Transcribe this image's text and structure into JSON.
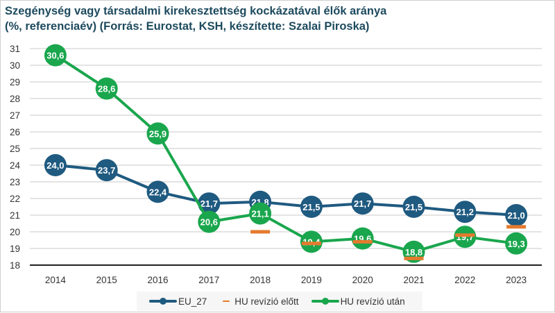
{
  "chart_data": {
    "type": "line",
    "title": "Szegénység vagy társadalmi kirekesztettség kockázatával élők aránya (%, referenciaév) (Forrás: Eurostat, KSH, készítette: Szalai Piroska)",
    "title_line1": "Szegénység vagy társadalmi kirekesztettség kockázatával élők aránya",
    "title_line2": "(%, referenciaév) (Forrás: Eurostat, KSH, készítette: Szalai Piroska)",
    "xlabel": "",
    "ylabel": "",
    "categories": [
      "2014",
      "2015",
      "2016",
      "2017",
      "2018",
      "2019",
      "2020",
      "2021",
      "2022",
      "2023"
    ],
    "ylim": [
      18,
      31
    ],
    "yticks": [
      "18",
      "19",
      "20",
      "21",
      "22",
      "23",
      "24",
      "25",
      "26",
      "27",
      "28",
      "29",
      "30",
      "31"
    ],
    "grid": true,
    "legend_position": "bottom",
    "series": [
      {
        "name": "EU_27",
        "color": "#1f5a80",
        "style": "line-marker",
        "values": [
          24.0,
          23.7,
          22.4,
          21.7,
          21.8,
          21.5,
          21.7,
          21.5,
          21.2,
          21.0
        ],
        "labels": [
          "24,0",
          "23,7",
          "22,4",
          "21,7",
          "21,8",
          "21,5",
          "21,7",
          "21,5",
          "21,2",
          "21,0"
        ]
      },
      {
        "name": "HU revízió előtt",
        "color": "#e57a2e",
        "style": "dash-marker",
        "values": [
          null,
          null,
          null,
          null,
          20.0,
          19.3,
          19.4,
          18.4,
          19.8,
          20.3
        ],
        "labels": []
      },
      {
        "name": "HU revízió után",
        "color": "#1aa64d",
        "style": "line-marker",
        "values": [
          30.6,
          28.6,
          25.9,
          20.6,
          21.1,
          19.4,
          19.6,
          18.8,
          19.7,
          19.3
        ],
        "labels": [
          "30,6",
          "28,6",
          "25,9",
          "20,6",
          "21,1",
          "19,4",
          "19,6",
          "18,8",
          "19,7",
          "19,3"
        ]
      }
    ]
  },
  "legend": {
    "items": [
      {
        "label": "EU_27",
        "color": "#1f5a80"
      },
      {
        "label": "HU revízió előtt",
        "color": "#e57a2e"
      },
      {
        "label": "HU revízió után",
        "color": "#1aa64d"
      }
    ]
  }
}
